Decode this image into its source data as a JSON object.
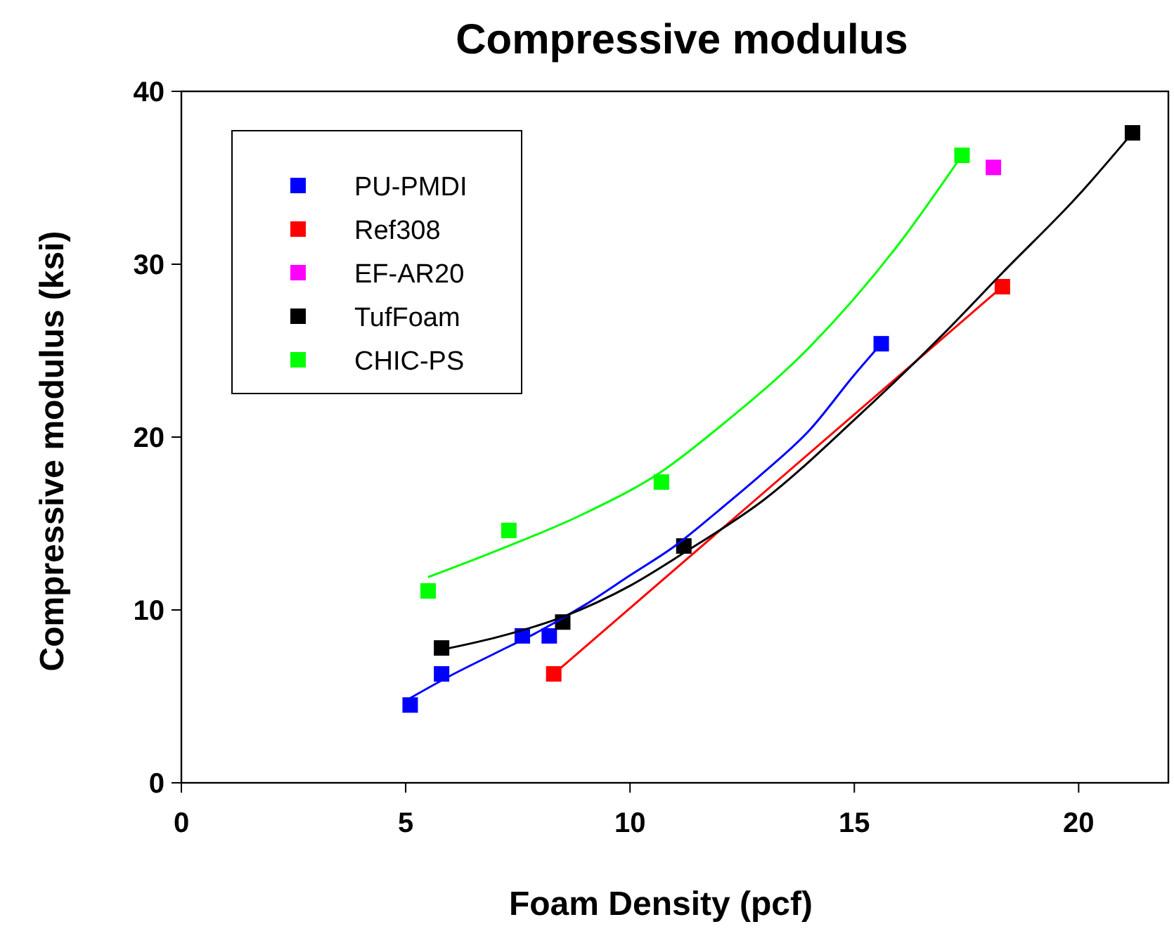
{
  "chart_data": {
    "type": "scatter",
    "title": "Compressive modulus",
    "xlabel": "Foam Density (pcf)",
    "ylabel": "Compressive modulus (ksi)",
    "xlim": [
      0,
      22
    ],
    "xticks": [
      0,
      5,
      10,
      15,
      20
    ],
    "ylim": [
      0,
      40
    ],
    "yticks": [
      0,
      10,
      20,
      30,
      40
    ],
    "grid": false,
    "legend": "top left",
    "marker": "square",
    "series": [
      {
        "name": "PU-PMDI",
        "color": "#0000ff",
        "x": [
          5.1,
          5.8,
          7.6,
          8.2,
          15.6
        ],
        "values": [
          4.5,
          6.3,
          8.5,
          8.5,
          25.4
        ]
      },
      {
        "name": "Ref308",
        "color": "#ff0000",
        "x": [
          8.3,
          18.3
        ],
        "values": [
          6.3,
          28.7
        ]
      },
      {
        "name": "EF-AR20",
        "color": "#ff00ff",
        "x": [
          18.1
        ],
        "values": [
          35.6
        ]
      },
      {
        "name": "TufFoam",
        "color": "#000000",
        "x": [
          5.8,
          8.5,
          11.2,
          21.2
        ],
        "values": [
          7.8,
          9.3,
          13.7,
          37.6
        ]
      },
      {
        "name": "CHIC-PS",
        "color": "#00ff00",
        "x": [
          5.5,
          7.3,
          10.7,
          17.4
        ],
        "values": [
          11.1,
          14.6,
          17.4,
          36.3
        ]
      },
      {
        "type": "line",
        "color": "#0000ff",
        "marker": "none",
        "x": [
          5.1,
          6,
          7,
          8,
          9,
          10,
          11,
          12,
          13,
          14,
          15,
          15.6
        ],
        "values": [
          4.9,
          6.2,
          7.5,
          8.8,
          10.3,
          12,
          13.7,
          15.8,
          18,
          20.4,
          23.6,
          25.4
        ]
      },
      {
        "type": "line",
        "color": "#ff0000",
        "marker": "none",
        "x": [
          8.3,
          18.3
        ],
        "values": [
          6.3,
          28.7
        ]
      },
      {
        "type": "line",
        "color": "#000000",
        "marker": "none",
        "x": [
          5.8,
          7,
          8.5,
          10,
          11.2,
          13,
          15,
          17,
          18.3,
          20,
          21.2
        ],
        "values": [
          7.7,
          8.4,
          9.6,
          11.4,
          13.3,
          16.4,
          21,
          26,
          29.5,
          34,
          37.6
        ]
      },
      {
        "type": "line",
        "color": "#00ff00",
        "marker": "none",
        "x": [
          5.5,
          7,
          9,
          10.7,
          12,
          14,
          16,
          17.4
        ],
        "values": [
          11.9,
          13.4,
          15.6,
          18,
          20.6,
          25.2,
          31.2,
          36.3
        ]
      }
    ]
  }
}
